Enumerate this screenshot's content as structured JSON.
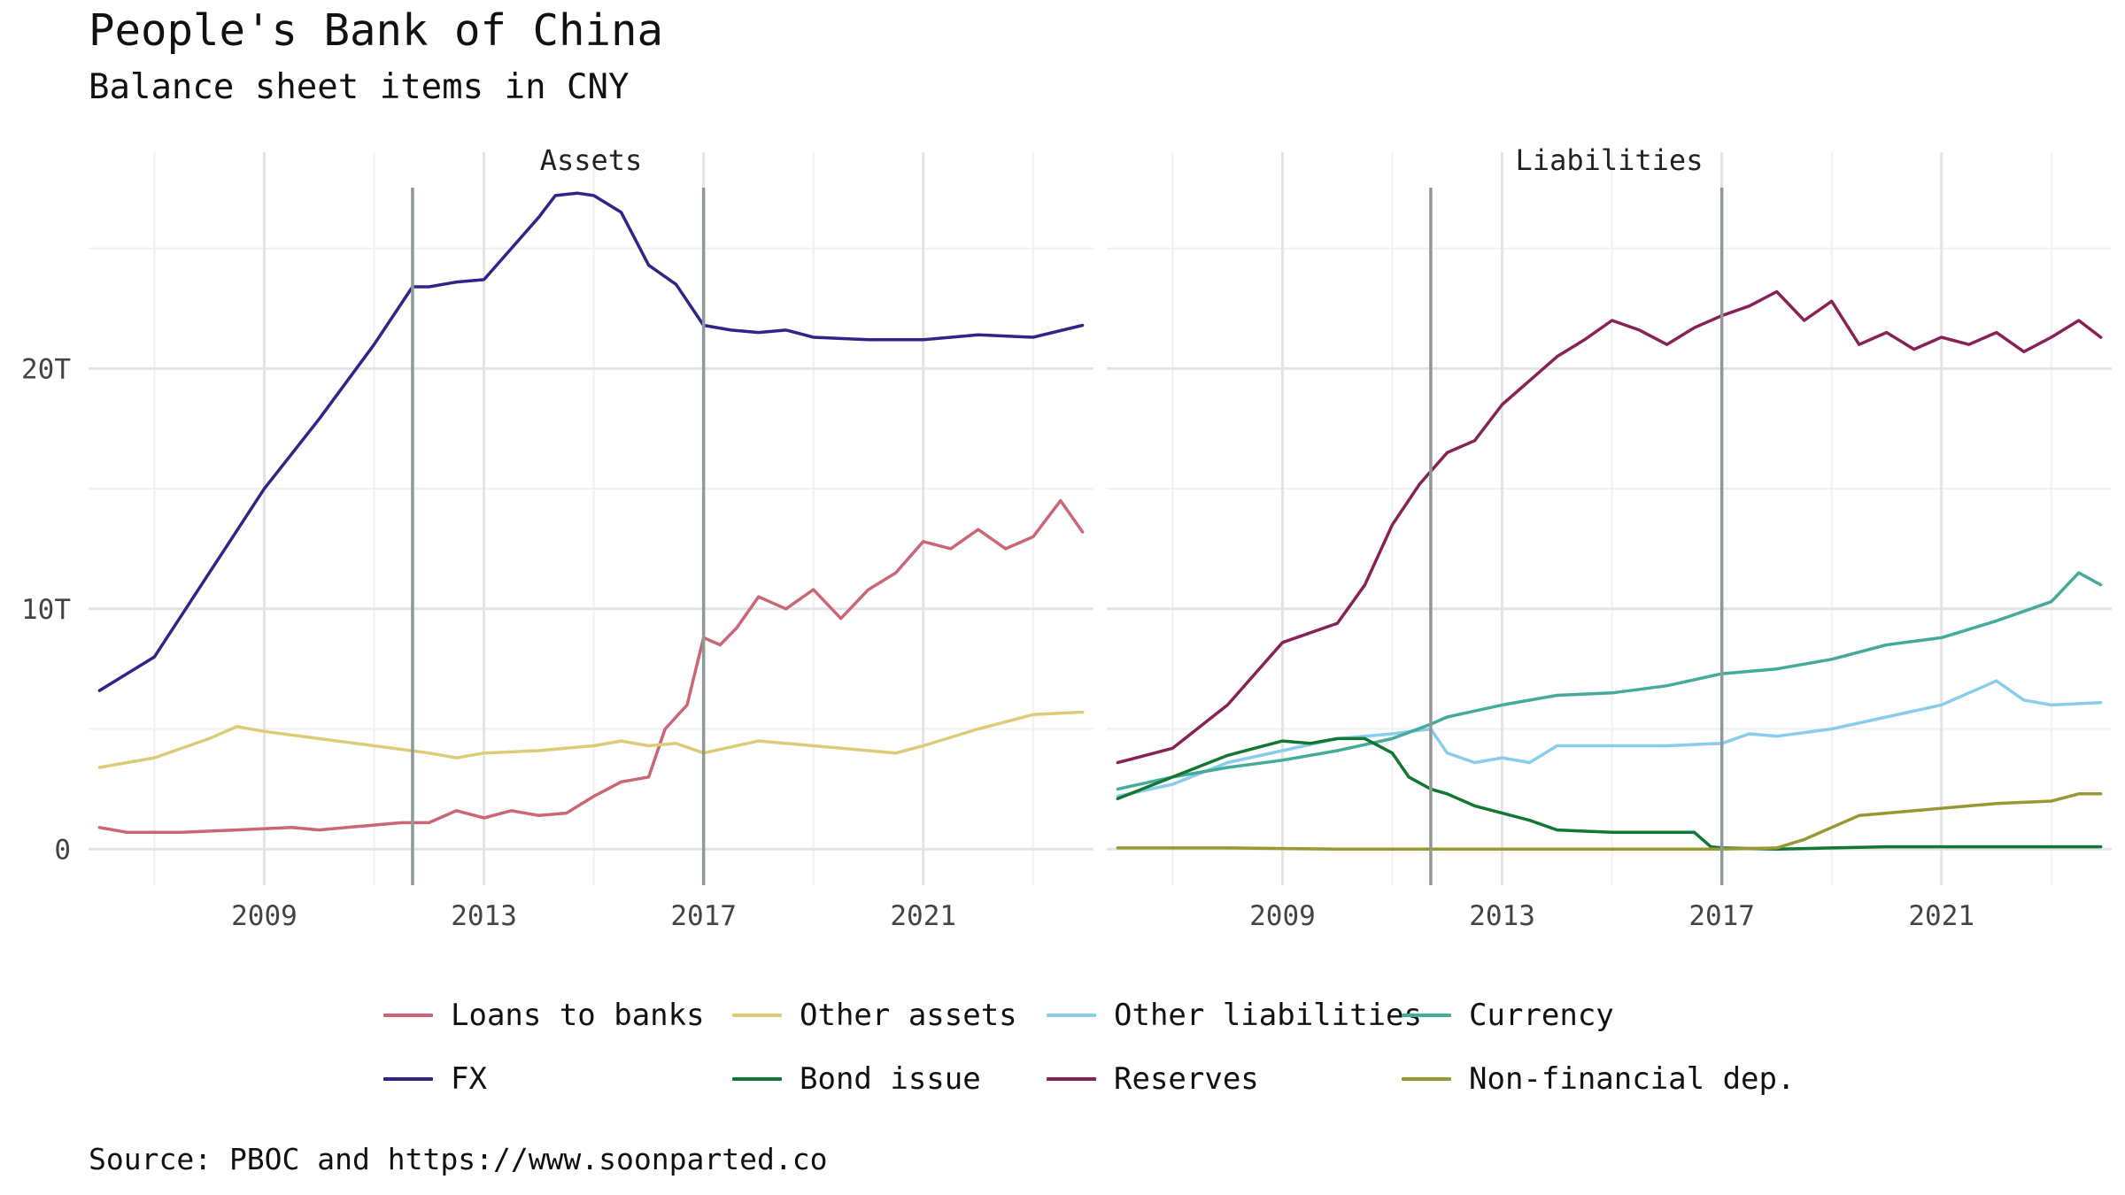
{
  "header": {
    "title": "People's Bank of China",
    "subtitle": "Balance sheet items in CNY"
  },
  "caption": "Source: PBOC and https://www.soonparted.co",
  "chart_data": {
    "type": "line",
    "facets": [
      "Assets",
      "Liabilities"
    ],
    "x_range": [
      2005.8,
      2024.1
    ],
    "x_ticks": [
      2009,
      2013,
      2017,
      2021
    ],
    "x_tick_labels": [
      "2009",
      "2013",
      "2017",
      "2021"
    ],
    "y_range": [
      -1.5,
      29
    ],
    "y_ticks": [
      0,
      10,
      20
    ],
    "y_tick_labels": [
      "0",
      "10T",
      "20T"
    ],
    "grid": true,
    "vlines": [
      2011.7,
      2017.0
    ],
    "legend_position": "bottom",
    "series": [
      {
        "name": "Loans to banks",
        "facet": "Assets",
        "color": "#CC6677",
        "x": [
          2006.0,
          2006.5,
          2007.5,
          2008.5,
          2009.5,
          2010.0,
          2010.5,
          2011.0,
          2011.5,
          2012.0,
          2012.5,
          2013.0,
          2013.5,
          2014.0,
          2014.5,
          2015.0,
          2015.5,
          2016.0,
          2016.3,
          2016.7,
          2017.0,
          2017.3,
          2017.6,
          2018.0,
          2018.5,
          2019.0,
          2019.5,
          2020.0,
          2020.5,
          2021.0,
          2021.5,
          2022.0,
          2022.5,
          2023.0,
          2023.5,
          2023.9
        ],
        "values": [
          0.9,
          0.7,
          0.7,
          0.8,
          0.9,
          0.8,
          0.9,
          1.0,
          1.1,
          1.1,
          1.6,
          1.3,
          1.6,
          1.4,
          1.5,
          2.2,
          2.8,
          3.0,
          5.0,
          6.0,
          8.8,
          8.5,
          9.2,
          10.5,
          10.0,
          10.8,
          9.6,
          10.8,
          11.5,
          12.8,
          12.5,
          13.3,
          12.5,
          13.0,
          14.5,
          13.2
        ]
      },
      {
        "name": "FX",
        "facet": "Assets",
        "color": "#332288",
        "x": [
          2006.0,
          2007.0,
          2008.0,
          2009.0,
          2010.0,
          2011.0,
          2011.7,
          2012.0,
          2012.5,
          2013.0,
          2013.5,
          2014.0,
          2014.3,
          2014.7,
          2015.0,
          2015.5,
          2016.0,
          2016.5,
          2017.0,
          2017.5,
          2018.0,
          2018.5,
          2019.0,
          2020.0,
          2021.0,
          2022.0,
          2023.0,
          2023.9
        ],
        "values": [
          6.6,
          8.0,
          11.5,
          15.0,
          17.9,
          21.0,
          23.4,
          23.4,
          23.6,
          23.7,
          25.0,
          26.3,
          27.2,
          27.3,
          27.2,
          26.5,
          24.3,
          23.5,
          21.8,
          21.6,
          21.5,
          21.6,
          21.3,
          21.2,
          21.2,
          21.4,
          21.3,
          21.8
        ]
      },
      {
        "name": "Other assets",
        "facet": "Assets",
        "color": "#DDCC77",
        "x": [
          2006.0,
          2007.0,
          2008.0,
          2008.5,
          2009.0,
          2010.0,
          2011.0,
          2012.0,
          2012.5,
          2013.0,
          2014.0,
          2015.0,
          2015.5,
          2016.0,
          2016.5,
          2017.0,
          2018.0,
          2019.0,
          2020.0,
          2020.5,
          2021.0,
          2022.0,
          2023.0,
          2023.9
        ],
        "values": [
          3.4,
          3.8,
          4.6,
          5.1,
          4.9,
          4.6,
          4.3,
          4.0,
          3.8,
          4.0,
          4.1,
          4.3,
          4.5,
          4.3,
          4.4,
          4.0,
          4.5,
          4.3,
          4.1,
          4.0,
          4.3,
          5.0,
          5.6,
          5.7
        ]
      },
      {
        "name": "Other liabilities",
        "facet": "Liabilities",
        "color": "#88CCEE",
        "x": [
          2006.0,
          2007.0,
          2008.0,
          2009.0,
          2010.0,
          2011.0,
          2011.7,
          2012.0,
          2012.5,
          2013.0,
          2013.5,
          2014.0,
          2015.0,
          2016.0,
          2017.0,
          2017.5,
          2018.0,
          2019.0,
          2020.0,
          2021.0,
          2021.5,
          2022.0,
          2022.5,
          2023.0,
          2023.9
        ],
        "values": [
          2.2,
          2.7,
          3.6,
          4.1,
          4.6,
          4.8,
          5.0,
          4.0,
          3.6,
          3.8,
          3.6,
          4.3,
          4.3,
          4.3,
          4.4,
          4.8,
          4.7,
          5.0,
          5.5,
          6.0,
          6.5,
          7.0,
          6.2,
          6.0,
          6.1
        ]
      },
      {
        "name": "Currency",
        "facet": "Liabilities",
        "color": "#44AA99",
        "x": [
          2006.0,
          2007.0,
          2008.0,
          2009.0,
          2010.0,
          2011.0,
          2011.7,
          2012.0,
          2013.0,
          2014.0,
          2015.0,
          2016.0,
          2017.0,
          2018.0,
          2019.0,
          2020.0,
          2021.0,
          2022.0,
          2023.0,
          2023.5,
          2023.9
        ],
        "values": [
          2.5,
          3.0,
          3.4,
          3.7,
          4.1,
          4.6,
          5.2,
          5.5,
          6.0,
          6.4,
          6.5,
          6.8,
          7.3,
          7.5,
          7.9,
          8.5,
          8.8,
          9.5,
          10.3,
          11.5,
          11.0
        ]
      },
      {
        "name": "Bond issue",
        "facet": "Liabilities",
        "color": "#117733",
        "x": [
          2006.0,
          2007.0,
          2008.0,
          2009.0,
          2009.5,
          2010.0,
          2010.5,
          2011.0,
          2011.3,
          2011.7,
          2012.0,
          2012.5,
          2013.0,
          2013.5,
          2014.0,
          2015.0,
          2016.0,
          2016.5,
          2016.8,
          2017.0,
          2018.0,
          2019.0,
          2020.0,
          2021.0,
          2022.0,
          2023.9
        ],
        "values": [
          2.1,
          3.0,
          3.9,
          4.5,
          4.4,
          4.6,
          4.6,
          4.0,
          3.0,
          2.5,
          2.3,
          1.8,
          1.5,
          1.2,
          0.8,
          0.7,
          0.7,
          0.7,
          0.1,
          0.05,
          0.0,
          0.05,
          0.1,
          0.1,
          0.1,
          0.1
        ]
      },
      {
        "name": "Reserves",
        "facet": "Liabilities",
        "color": "#882255",
        "x": [
          2006.0,
          2007.0,
          2008.0,
          2009.0,
          2010.0,
          2010.5,
          2011.0,
          2011.5,
          2012.0,
          2012.5,
          2013.0,
          2013.5,
          2014.0,
          2014.5,
          2015.0,
          2015.5,
          2016.0,
          2016.5,
          2017.0,
          2017.5,
          2018.0,
          2018.5,
          2019.0,
          2019.5,
          2020.0,
          2020.5,
          2021.0,
          2021.5,
          2022.0,
          2022.5,
          2023.0,
          2023.5,
          2023.9
        ],
        "values": [
          3.6,
          4.2,
          6.0,
          8.6,
          9.4,
          11.0,
          13.5,
          15.2,
          16.5,
          17.0,
          18.5,
          19.5,
          20.5,
          21.2,
          22.0,
          21.6,
          21.0,
          21.7,
          22.2,
          22.6,
          23.2,
          22.0,
          22.8,
          21.0,
          21.5,
          20.8,
          21.3,
          21.0,
          21.5,
          20.7,
          21.3,
          22.0,
          21.3
        ]
      },
      {
        "name": "Non-financial dep.",
        "facet": "Liabilities",
        "color": "#999933",
        "x": [
          2006.0,
          2008.0,
          2010.0,
          2012.0,
          2014.0,
          2016.0,
          2017.0,
          2018.0,
          2018.5,
          2019.0,
          2019.5,
          2020.0,
          2021.0,
          2022.0,
          2023.0,
          2023.5,
          2023.9
        ],
        "values": [
          0.05,
          0.05,
          0.0,
          0.0,
          0.0,
          0.0,
          0.0,
          0.05,
          0.4,
          0.9,
          1.4,
          1.5,
          1.7,
          1.9,
          2.0,
          2.3,
          2.3
        ]
      }
    ]
  }
}
